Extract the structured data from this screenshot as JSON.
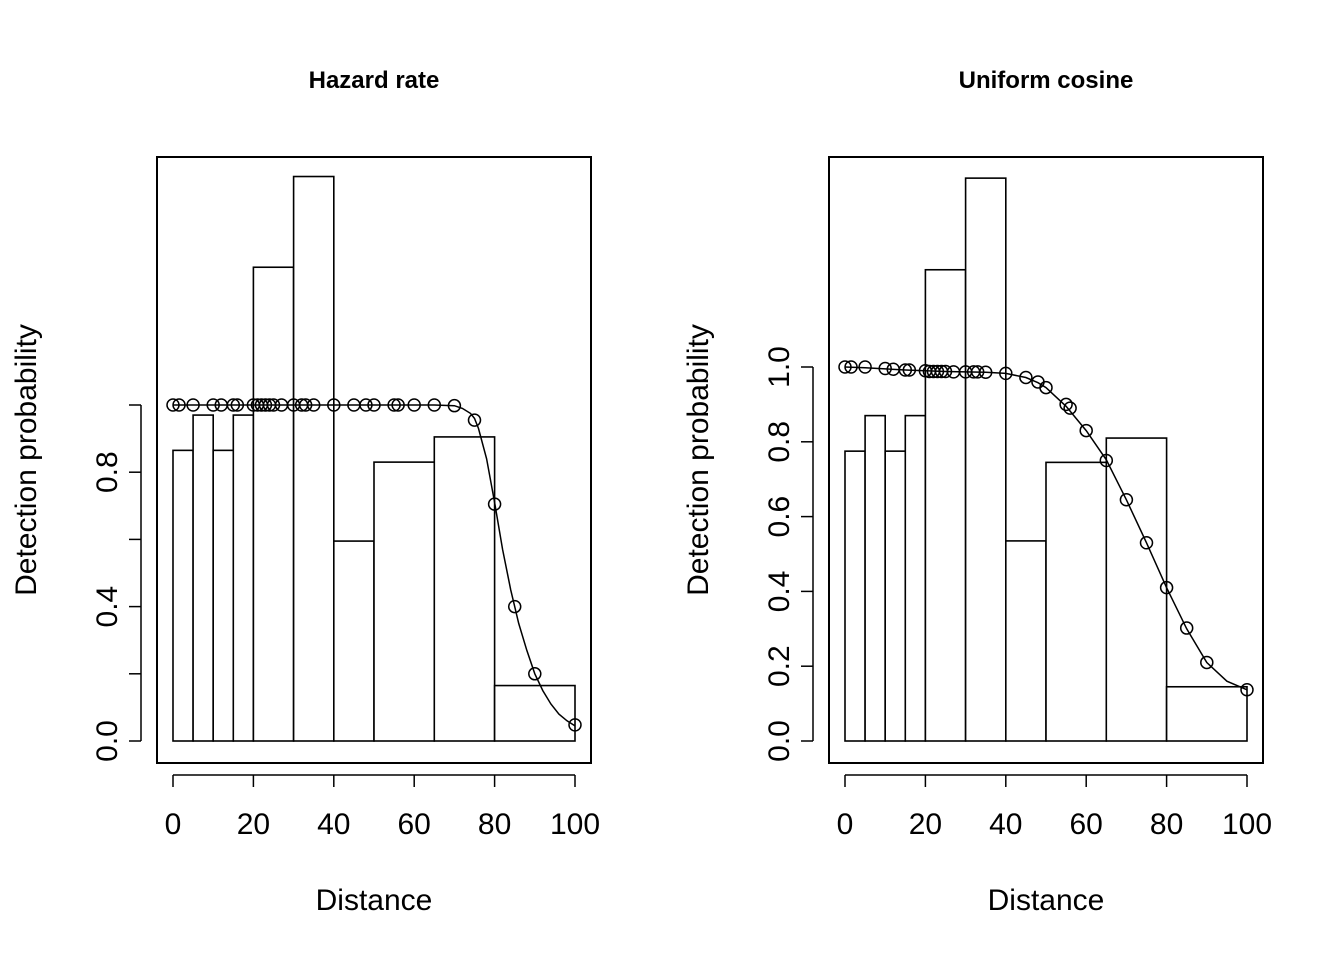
{
  "chart_data": [
    {
      "type": "bar",
      "title": "Hazard rate",
      "xlabel": "Distance",
      "ylabel": "Detection probability",
      "xlim": [
        0,
        100
      ],
      "ylim": [
        0,
        1.68
      ],
      "xticks": [
        "0",
        "20",
        "40",
        "60",
        "80",
        "100"
      ],
      "yticks": [
        "0.0",
        "0.4",
        "0.8"
      ],
      "histogram": {
        "breaks": [
          0,
          5,
          10,
          15,
          20,
          30,
          40,
          50,
          65,
          80,
          100
        ],
        "values": [
          0.865,
          0.97,
          0.865,
          0.97,
          1.41,
          1.68,
          0.595,
          0.83,
          0.905,
          0.165
        ]
      },
      "fitted_curve": {
        "x": [
          0,
          10,
          20,
          30,
          40,
          50,
          60,
          65,
          70,
          72,
          74,
          75,
          76,
          78,
          80,
          82,
          84,
          85,
          86,
          88,
          90,
          92,
          94,
          96,
          98,
          100
        ],
        "y": [
          1.0,
          1.0,
          1.0,
          1.0,
          1.0,
          1.0,
          1.0,
          1.0,
          0.998,
          0.99,
          0.975,
          0.96,
          0.93,
          0.84,
          0.71,
          0.57,
          0.45,
          0.4,
          0.35,
          0.27,
          0.2,
          0.15,
          0.11,
          0.08,
          0.06,
          0.045
        ]
      },
      "points": {
        "x": [
          0,
          1.5,
          5,
          10,
          12,
          15,
          16,
          20,
          21,
          22,
          23,
          24,
          25,
          27,
          30,
          32,
          33,
          35,
          40,
          45,
          48,
          50,
          55,
          56,
          60,
          65,
          70,
          75,
          80,
          85,
          90,
          100
        ],
        "y": [
          1.0,
          1.0,
          1.0,
          1.0,
          1.0,
          1.0,
          1.0,
          1.0,
          1.0,
          1.0,
          1.0,
          1.0,
          1.0,
          1.0,
          1.0,
          1.0,
          1.0,
          1.0,
          1.0,
          1.0,
          1.0,
          1.0,
          1.0,
          1.0,
          1.0,
          1.0,
          0.998,
          0.955,
          0.705,
          0.4,
          0.2,
          0.048
        ]
      }
    },
    {
      "type": "bar",
      "title": "Uniform cosine",
      "xlabel": "Distance",
      "ylabel": "Detection probability",
      "xlim": [
        0,
        100
      ],
      "ylim": [
        0,
        1.5
      ],
      "xticks": [
        "0",
        "20",
        "40",
        "60",
        "80",
        "100"
      ],
      "yticks": [
        "0.0",
        "0.2",
        "0.4",
        "0.6",
        "0.8",
        "1.0"
      ],
      "histogram": {
        "breaks": [
          0,
          5,
          10,
          15,
          20,
          30,
          40,
          50,
          65,
          80,
          100
        ],
        "values": [
          0.775,
          0.87,
          0.775,
          0.87,
          1.26,
          1.505,
          0.535,
          0.745,
          0.81,
          0.145
        ]
      },
      "fitted_curve": {
        "x": [
          0,
          5,
          10,
          15,
          20,
          25,
          30,
          35,
          40,
          45,
          48,
          50,
          52,
          55,
          60,
          65,
          70,
          75,
          80,
          85,
          90,
          95,
          100
        ],
        "y": [
          1.0,
          0.998,
          0.995,
          0.992,
          0.99,
          0.988,
          0.987,
          0.986,
          0.983,
          0.972,
          0.958,
          0.945,
          0.925,
          0.895,
          0.83,
          0.752,
          0.645,
          0.53,
          0.41,
          0.3,
          0.21,
          0.16,
          0.137
        ]
      },
      "points": {
        "x": [
          0,
          1.5,
          5,
          10,
          12,
          15,
          16,
          20,
          21,
          22,
          23,
          24,
          25,
          27,
          30,
          32,
          33,
          35,
          40,
          45,
          48,
          50,
          55,
          56,
          60,
          65,
          70,
          75,
          80,
          85,
          90,
          100
        ],
        "y": [
          1.0,
          1.0,
          1.0,
          0.996,
          0.994,
          0.992,
          0.992,
          0.99,
          0.988,
          0.988,
          0.988,
          0.988,
          0.988,
          0.987,
          0.987,
          0.987,
          0.987,
          0.986,
          0.983,
          0.972,
          0.96,
          0.945,
          0.9,
          0.89,
          0.83,
          0.75,
          0.645,
          0.53,
          0.41,
          0.302,
          0.21,
          0.137
        ]
      }
    }
  ]
}
